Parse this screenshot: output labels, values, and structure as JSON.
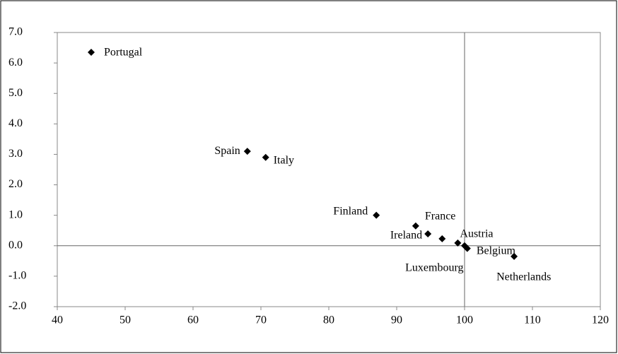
{
  "chart_data": {
    "type": "scatter",
    "color": "#000000",
    "categories": [
      "Portugal",
      "Spain",
      "Italy",
      "Finland",
      "France",
      "Ireland",
      "Luxembourg",
      "Austria",
      null,
      "Belgium",
      "Netherlands"
    ],
    "x": [
      45.0,
      68.0,
      70.7,
      87.0,
      92.8,
      94.6,
      96.7,
      99.0,
      100.0,
      100.4,
      107.3
    ],
    "values": [
      6.35,
      3.1,
      2.9,
      1.0,
      0.65,
      0.39,
      0.23,
      0.09,
      0.0,
      -0.09,
      -0.35
    ],
    "xlim": [
      40,
      120
    ],
    "ylim": [
      -2,
      7
    ],
    "xticks": [
      40,
      50,
      60,
      70,
      80,
      90,
      100,
      110,
      120
    ],
    "yticks": [
      {
        "value": -2,
        "label": "-2.0"
      },
      {
        "value": -1,
        "label": "-1.0"
      },
      {
        "value": 0,
        "label": "0.0"
      },
      {
        "value": 1,
        "label": "1.0"
      },
      {
        "value": 2,
        "label": "2.0"
      },
      {
        "value": 3,
        "label": "3.0"
      },
      {
        "value": 4,
        "label": "4.0"
      },
      {
        "value": 5,
        "label": "5.0"
      },
      {
        "value": 6,
        "label": "6.0"
      },
      {
        "value": 7,
        "label": "7.0"
      }
    ],
    "xref": 100,
    "yref": 0
  }
}
